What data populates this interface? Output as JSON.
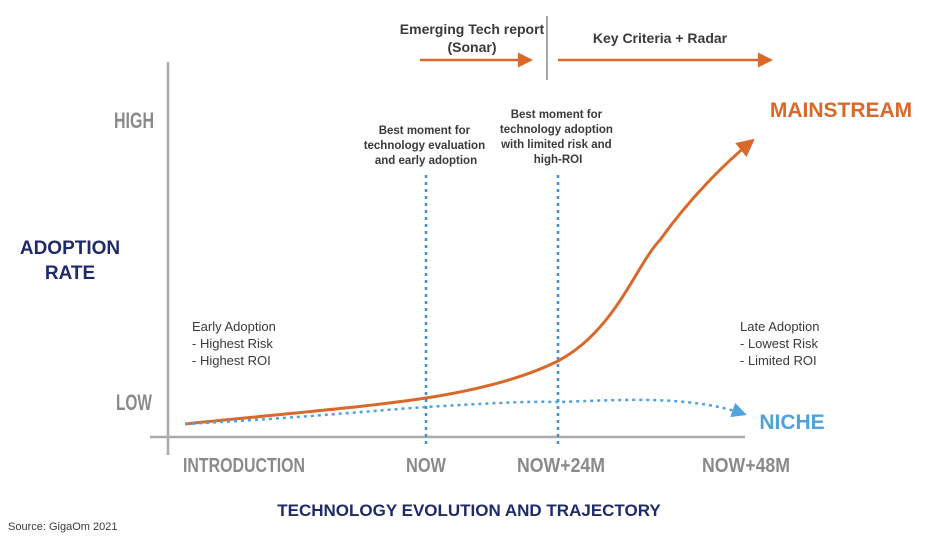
{
  "phases": {
    "sonar_label_line1": "Emerging Tech report",
    "sonar_label_line2": "(Sonar)",
    "radar_label": "Key Criteria + Radar"
  },
  "y_axis": {
    "label_line1": "ADOPTION",
    "label_line2": "RATE",
    "high": "HIGH",
    "low": "LOW"
  },
  "x_axis": {
    "title": "TECHNOLOGY EVOLUTION AND TRAJECTORY",
    "ticks": [
      "INTRODUCTION",
      "NOW",
      "NOW+24M",
      "NOW+48M"
    ]
  },
  "annotations": {
    "now": [
      "Best moment for",
      "technology evaluation",
      "and early adoption"
    ],
    "now24": [
      "Best moment for",
      "technology adoption",
      "with limited risk and",
      "high-ROI"
    ],
    "early": [
      "Early Adoption",
      "- Highest Risk",
      "- Highest ROI"
    ],
    "late": [
      "Late Adoption",
      "- Lowest Risk",
      "- Limited ROI"
    ]
  },
  "curves": {
    "mainstream": {
      "label": "MAINSTREAM",
      "color": "#d9682b"
    },
    "niche": {
      "label": "NICHE",
      "color": "#4ea3dc"
    }
  },
  "colors": {
    "axis": "#aaaaaa",
    "axis_label": "#1f2a6b",
    "tick_label": "#8a8a8a",
    "annotation": "#3a3a3a",
    "guide_line": "#3d8fd0",
    "phase_arrow": "#d9682b",
    "divider": "#888888"
  },
  "source": "Source: GigaOm 2021"
}
